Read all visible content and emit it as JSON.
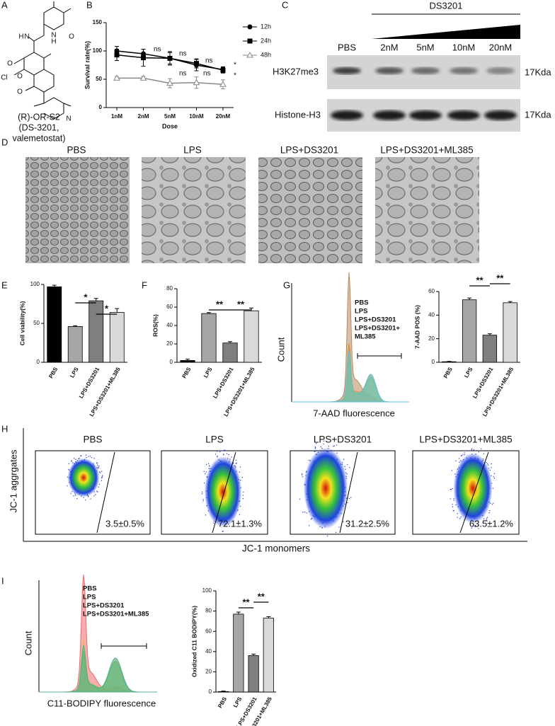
{
  "panel_labels": [
    "A",
    "B",
    "C",
    "D",
    "E",
    "F",
    "G",
    "H",
    "I"
  ],
  "compound": {
    "atoms": [
      "N",
      "H",
      "O",
      "N",
      "H",
      "O",
      "Cl",
      "O",
      "O",
      "N"
    ],
    "caption": [
      "(R)-OR-S2",
      "(DS-3201,",
      "valemetostat)"
    ]
  },
  "blot": {
    "treatment": "DS3201",
    "lanes": [
      "PBS",
      "2nM",
      "5nM",
      "10nM",
      "20nM"
    ],
    "rows": [
      "H3K27me3",
      "Histone-H3"
    ],
    "size_labels": [
      "17Kda",
      "17Kda"
    ]
  },
  "micrographs": {
    "labels": [
      "PBS",
      "LPS",
      "LPS+DS3201",
      "LPS+DS3201+ML385"
    ]
  },
  "flow_g": {
    "x_label": "7-AAD fluorescence",
    "y_label": "Count",
    "legend": [
      {
        "lines": [
          "PBS"
        ],
        "color": "#b98a5e"
      },
      {
        "lines": [
          "LPS"
        ],
        "color": "#ec8a2c"
      },
      {
        "lines": [
          "LPS+DS3201"
        ],
        "color": "#7cc242"
      },
      {
        "lines": [
          "LPS+DS3201+",
          "ML385"
        ],
        "color": "#5ec4e6"
      }
    ]
  },
  "jc1": {
    "x_label": "JC-1 monomers",
    "y_label": "JC-1 aggrgates",
    "panels": [
      {
        "title": "PBS",
        "value": "3.5±0.5%"
      },
      {
        "title": "LPS",
        "value": "72.1±1.3%"
      },
      {
        "title": "LPS+DS3201",
        "value": "31.2±2.5%"
      },
      {
        "title": "LPS+DS3201+ML385",
        "value": "63.5±1.2%"
      }
    ]
  },
  "flow_i": {
    "x_label": "C11-BODIPY fluorescence",
    "y_label": "Count",
    "legend": [
      {
        "lines": [
          "PBS"
        ],
        "color": "#f06a6a"
      },
      {
        "lines": [
          "LPS"
        ],
        "color": "#f5b46e"
      },
      {
        "lines": [
          "LPS+DS3201"
        ],
        "color": "#6cc23a"
      },
      {
        "lines": [
          "LPS+DS3201+ML385"
        ],
        "color": "#4fb39a"
      }
    ]
  },
  "chart_data": [
    {
      "type": "line",
      "x_label": "Dose",
      "y_label": "Survival rate(%)",
      "categories": [
        "1nM",
        "2nM",
        "5nM",
        "10nM",
        "20nM"
      ],
      "ylim": [
        0,
        150
      ],
      "yticks": [
        0,
        50,
        100,
        150
      ],
      "series": [
        {
          "name": "12h",
          "color": "#000000",
          "marker": "circle",
          "values": [
            100,
            95,
            87,
            75,
            67
          ],
          "errors": [
            8,
            8,
            10,
            10,
            5
          ]
        },
        {
          "name": "24h",
          "color": "#000000",
          "marker": "square",
          "values": [
            93,
            88,
            87,
            78,
            66
          ],
          "errors": [
            10,
            15,
            12,
            8,
            5
          ]
        },
        {
          "name": "48h",
          "color": "#888888",
          "marker": "triangle",
          "values": [
            52,
            52,
            43,
            44,
            41
          ],
          "errors": [
            3,
            3,
            8,
            10,
            8
          ]
        }
      ],
      "annotations": [
        "ns",
        "ns",
        "ns",
        "ns",
        "ns",
        "*",
        "*"
      ]
    },
    {
      "type": "bar",
      "y_label": "Cell viability(%)",
      "categories": [
        "PBS",
        "LPS",
        "LPS+DS3201",
        "LPS+DS3201+ML385"
      ],
      "values": [
        97,
        46,
        79,
        64
      ],
      "errors": [
        2,
        1,
        3,
        5
      ],
      "colors": [
        "#000000",
        "#a6a6a6",
        "#7f7f7f",
        "#d9d9d9"
      ],
      "ylim": [
        0,
        100
      ],
      "yticks": [
        0,
        50,
        100
      ],
      "annotations": [
        "*",
        "*"
      ]
    },
    {
      "type": "bar",
      "y_label": "ROS(%)",
      "categories": [
        "PBS",
        "LPS",
        "LPS+DS3201",
        "LPS+DS3201+ML385"
      ],
      "values": [
        2,
        53,
        21,
        56
      ],
      "errors": [
        1.5,
        1,
        1.5,
        3
      ],
      "colors": [
        "#000000",
        "#a6a6a6",
        "#7f7f7f",
        "#d9d9d9"
      ],
      "ylim": [
        0,
        80
      ],
      "yticks": [
        0,
        20,
        40,
        60,
        80
      ],
      "annotations": [
        "**",
        "**"
      ]
    },
    {
      "type": "bar",
      "y_label": "7-AAD POS (%)",
      "categories": [
        "PBS",
        "LPS",
        "LPS+DS3201",
        "LPS+DS3201+ML385"
      ],
      "values": [
        0.5,
        53,
        23,
        50.5
      ],
      "errors": [
        0.3,
        1.5,
        1.2,
        1
      ],
      "colors": [
        "#000000",
        "#a6a6a6",
        "#7f7f7f",
        "#d9d9d9"
      ],
      "ylim": [
        0,
        60
      ],
      "yticks": [
        0,
        20,
        40,
        60
      ],
      "annotations": [
        "**",
        "**"
      ]
    },
    {
      "type": "bar",
      "y_label": "Oxidized C11 BODIPY(%)",
      "categories": [
        "PBS",
        "LPS",
        "LPS+DS3201",
        "LPS+DS3201+ML385"
      ],
      "values": [
        0.5,
        77,
        36,
        73
      ],
      "errors": [
        0.5,
        2,
        1.5,
        1.5
      ],
      "colors": [
        "#000000",
        "#a6a6a6",
        "#7f7f7f",
        "#d9d9d9"
      ],
      "ylim": [
        0,
        100
      ],
      "yticks": [
        0,
        20,
        40,
        60,
        80,
        100
      ],
      "annotations": [
        "**",
        "**"
      ]
    }
  ]
}
